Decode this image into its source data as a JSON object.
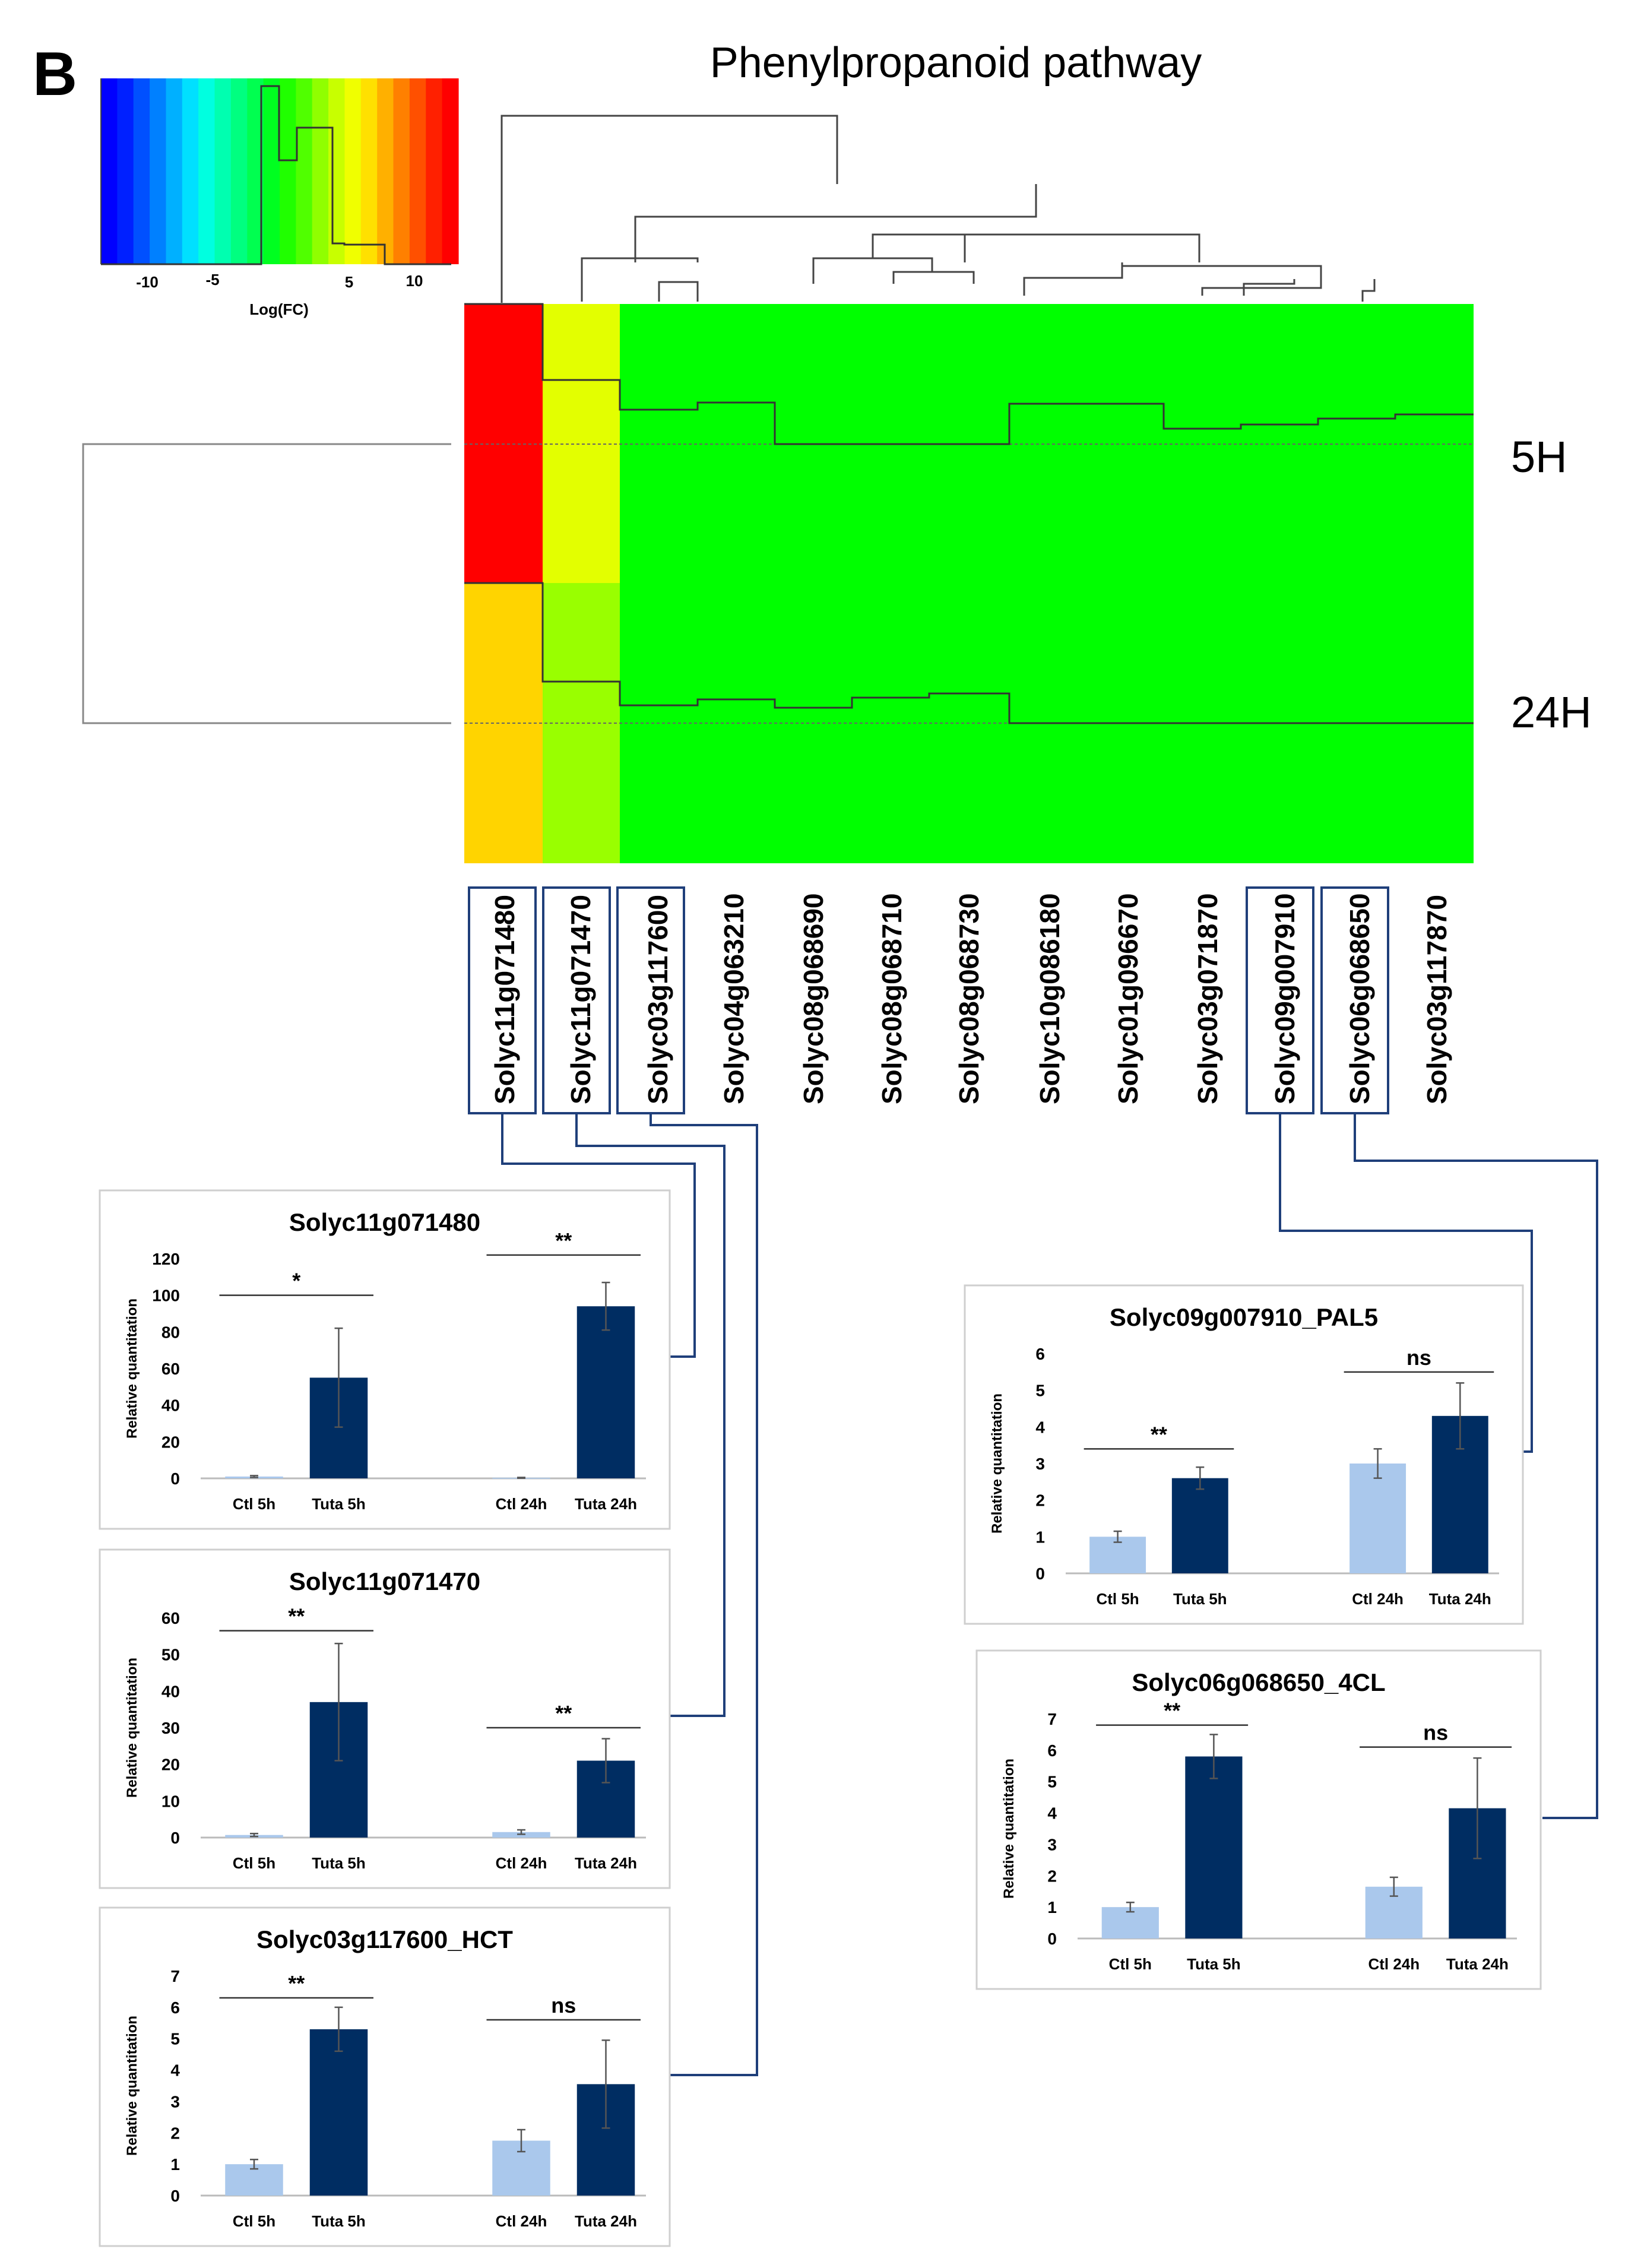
{
  "panel_letter": "B",
  "figure_title": "Phenylpropanoid pathway",
  "colors": {
    "up_strong": "#ff0000",
    "up_mid": "#ffd400",
    "up_low": "#e3ff00",
    "up_lower": "#99ff00",
    "no_change": "#00ff00",
    "ctl_bar": "#aac8ec",
    "tuta_bar": "#002d62",
    "connector": "#1f3f7a"
  },
  "heatmap": {
    "legend": {
      "ticks": [
        "-10",
        "-5",
        "5",
        "10"
      ],
      "label": "Log(FC)"
    },
    "rows": [
      "5H",
      "24H"
    ],
    "genes": [
      "Solyc11g071480",
      "Solyc11g071470",
      "Solyc03g117600",
      "Solyc04g063210",
      "Solyc08g068690",
      "Solyc08g068710",
      "Solyc08g068730",
      "Solyc10g086180",
      "Solyc01g096670",
      "Solyc03g071870",
      "Solyc09g007910",
      "Solyc06g068650",
      "Solyc03g117870"
    ],
    "highlighted_genes": [
      "Solyc11g071480",
      "Solyc11g071470",
      "Solyc03g117600",
      "Solyc09g007910",
      "Solyc06g068650"
    ]
  },
  "chart_data": [
    {
      "type": "bar",
      "title": "Solyc11g071480",
      "categories": [
        "Ctl 5h",
        "Tuta 5h",
        "Ctl 24h",
        "Tuta 24h"
      ],
      "values": [
        1,
        55,
        0.3,
        94
      ],
      "errors": [
        0.5,
        27,
        0.2,
        13
      ],
      "ylabel": "Relative quantitation",
      "yticks": [
        "0",
        "20",
        "40",
        "60",
        "80",
        "100",
        "120"
      ],
      "ylim": [
        0,
        120
      ],
      "significance": [
        {
          "pair": [
            0,
            1
          ],
          "label": "*",
          "y": 100
        },
        {
          "pair": [
            2,
            3
          ],
          "label": "**",
          "y": 122
        }
      ]
    },
    {
      "type": "bar",
      "title": "Solyc11g071470",
      "categories": [
        "Ctl 5h",
        "Tuta 5h",
        "Ctl 24h",
        "Tuta 24h"
      ],
      "values": [
        0.7,
        37,
        1.5,
        21
      ],
      "errors": [
        0.4,
        16,
        0.6,
        6
      ],
      "ylabel": "Relative quantitation",
      "yticks": [
        "0",
        "10",
        "20",
        "30",
        "40",
        "50",
        "60"
      ],
      "ylim": [
        0,
        60
      ],
      "significance": [
        {
          "pair": [
            0,
            1
          ],
          "label": "**",
          "y": 56.5
        },
        {
          "pair": [
            2,
            3
          ],
          "label": "**",
          "y": 30
        }
      ]
    },
    {
      "type": "bar",
      "title": "Solyc03g117600_HCT",
      "categories": [
        "Ctl 5h",
        "Tuta 5h",
        "Ctl 24h",
        "Tuta 24h"
      ],
      "values": [
        1.0,
        5.3,
        1.75,
        3.55
      ],
      "errors": [
        0.15,
        0.7,
        0.35,
        1.4
      ],
      "ylabel": "Relative quantitation",
      "yticks": [
        "0",
        "1",
        "2",
        "3",
        "4",
        "5",
        "6",
        "7"
      ],
      "ylim": [
        0,
        7
      ],
      "significance": [
        {
          "pair": [
            0,
            1
          ],
          "label": "**",
          "y": 6.3
        },
        {
          "pair": [
            2,
            3
          ],
          "label": "ns",
          "y": 5.6
        }
      ]
    },
    {
      "type": "bar",
      "title": "Solyc09g007910_PAL5",
      "categories": [
        "Ctl 5h",
        "Tuta 5h",
        "Ctl 24h",
        "Tuta 24h"
      ],
      "values": [
        1.0,
        2.6,
        3.0,
        4.3
      ],
      "errors": [
        0.15,
        0.3,
        0.4,
        0.9
      ],
      "ylabel": "Relative quantitation",
      "yticks": [
        "0",
        "1",
        "2",
        "3",
        "4",
        "5",
        "6"
      ],
      "ylim": [
        0,
        6
      ],
      "significance": [
        {
          "pair": [
            0,
            1
          ],
          "label": "**",
          "y": 3.4
        },
        {
          "pair": [
            2,
            3
          ],
          "label": "ns",
          "y": 5.5
        }
      ]
    },
    {
      "type": "bar",
      "title": "Solyc06g068650_4CL",
      "categories": [
        "Ctl 5h",
        "Tuta 5h",
        "Ctl 24h",
        "Tuta 24h"
      ],
      "values": [
        1.0,
        5.8,
        1.65,
        4.15
      ],
      "errors": [
        0.15,
        0.7,
        0.3,
        1.6
      ],
      "ylabel": "Relative quantitation",
      "yticks": [
        "0",
        "1",
        "2",
        "3",
        "4",
        "5",
        "6",
        "7"
      ],
      "ylim": [
        0,
        7
      ],
      "significance": [
        {
          "pair": [
            0,
            1
          ],
          "label": "**",
          "y": 6.8
        },
        {
          "pair": [
            2,
            3
          ],
          "label": "ns",
          "y": 6.1
        }
      ]
    }
  ]
}
